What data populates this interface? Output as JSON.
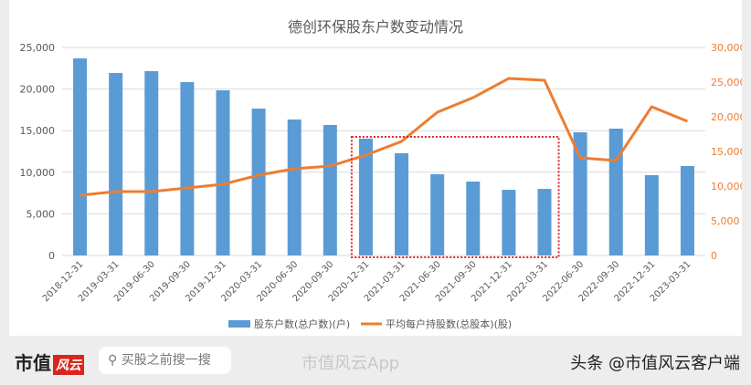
{
  "chart_data": {
    "type": "bar+line",
    "title": "德创环保股东户数变动情况",
    "categories": [
      "2018-12-31",
      "2019-03-31",
      "2019-06-30",
      "2019-09-30",
      "2019-12-31",
      "2020-03-31",
      "2020-06-30",
      "2020-09-30",
      "2020-12-31",
      "2021-03-31",
      "2021-06-30",
      "2021-09-30",
      "2021-12-31",
      "2022-03-31",
      "2022-06-30",
      "2022-09-30",
      "2022-12-31",
      "2023-03-31"
    ],
    "series": [
      {
        "name": "股东户数(总户数)(户)",
        "type": "bar",
        "axis": "left",
        "color": "#5b9bd5",
        "values": [
          23680,
          21930,
          22150,
          20830,
          19850,
          17650,
          16340,
          15680,
          14040,
          12280,
          9760,
          8880,
          7890,
          8000,
          14800,
          15240,
          9650,
          10750
        ]
      },
      {
        "name": "平均每户持股数(总股本)(股)",
        "type": "line",
        "axis": "right",
        "color": "#ed7d31",
        "values": [
          8680,
          9210,
          9210,
          9740,
          10260,
          11580,
          12500,
          12890,
          14470,
          16450,
          20660,
          22760,
          25530,
          25260,
          14080,
          13680,
          21450,
          19340
        ]
      }
    ],
    "left_axis": {
      "ylim": [
        0,
        25000
      ],
      "ticks": [
        "0",
        "5,000",
        "10,000",
        "15,000",
        "20,000",
        "25,000"
      ]
    },
    "right_axis": {
      "ylim": [
        0,
        30000
      ],
      "ticks": [
        "0",
        "5,000",
        "10,000",
        "15,000",
        "20,000",
        "25,000",
        "30,000"
      ],
      "color": "#ed7d31"
    },
    "grid": true,
    "legend": "bottom",
    "highlight": {
      "from": "2020-12-31",
      "to": "2022-03-31",
      "color": "#e0242b"
    }
  },
  "footer": {
    "logo": "市值",
    "logo_mark": "风云",
    "search_placeholder": "买股之前搜一搜",
    "watermark": "市值风云App",
    "source": "头条 @市值风云客户端"
  }
}
